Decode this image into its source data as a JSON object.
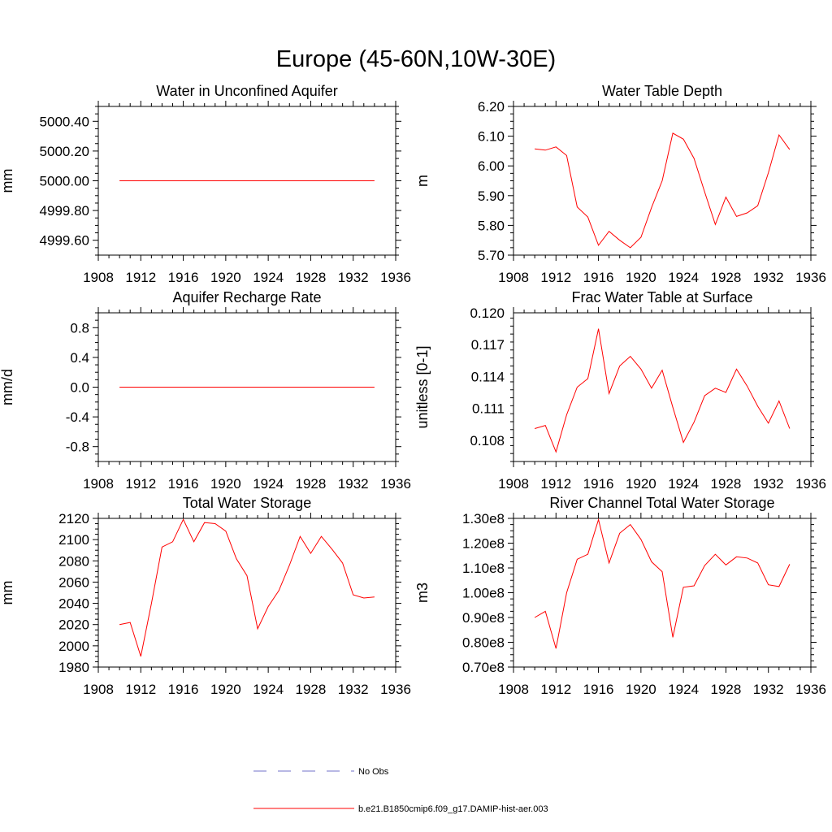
{
  "title": "Europe (45-60N,10W-30E)",
  "colors": {
    "model": "#ff0000",
    "obs": "#7070c8",
    "axis": "#000000"
  },
  "legend": {
    "obs_label": "No Obs",
    "model_label": "b.e21.B1850cmip6.f09_g17.DAMIP-hist-aer.003"
  },
  "chart_data": [
    {
      "type": "line",
      "title": "Water in Unconfined Aquifer",
      "ylabel": "mm",
      "xlim": [
        1908,
        1936
      ],
      "ylim": [
        4999.5,
        5000.5
      ],
      "xticks": [
        1908,
        1912,
        1916,
        1920,
        1924,
        1928,
        1932,
        1936
      ],
      "yticks": [
        4999.6,
        4999.8,
        5000.0,
        5000.2,
        5000.4
      ],
      "ytick_labels": [
        "4999.60",
        "4999.80",
        "5000.00",
        "5000.20",
        "5000.40"
      ],
      "series": [
        {
          "x": [
            1910,
            1911,
            1912,
            1913,
            1914,
            1915,
            1916,
            1917,
            1918,
            1919,
            1920,
            1921,
            1922,
            1923,
            1924,
            1925,
            1926,
            1927,
            1928,
            1929,
            1930,
            1931,
            1932,
            1933,
            1934
          ],
          "values": [
            5000,
            5000,
            5000,
            5000,
            5000,
            5000,
            5000,
            5000,
            5000,
            5000,
            5000,
            5000,
            5000,
            5000,
            5000,
            5000,
            5000,
            5000,
            5000,
            5000,
            5000,
            5000,
            5000,
            5000,
            5000
          ]
        }
      ]
    },
    {
      "type": "line",
      "title": "Water Table Depth",
      "ylabel": "m",
      "xlim": [
        1908,
        1936
      ],
      "ylim": [
        5.7,
        6.2
      ],
      "xticks": [
        1908,
        1912,
        1916,
        1920,
        1924,
        1928,
        1932,
        1936
      ],
      "yticks": [
        5.7,
        5.8,
        5.9,
        6.0,
        6.1,
        6.2
      ],
      "ytick_labels": [
        "5.70",
        "5.80",
        "5.90",
        "6.00",
        "6.10",
        "6.20"
      ],
      "series": [
        {
          "x": [
            1910,
            1911,
            1912,
            1913,
            1914,
            1915,
            1916,
            1917,
            1918,
            1919,
            1920,
            1921,
            1922,
            1923,
            1924,
            1925,
            1926,
            1927,
            1928,
            1929,
            1930,
            1931,
            1932,
            1933,
            1934
          ],
          "values": [
            6.057,
            6.053,
            6.064,
            6.035,
            5.862,
            5.828,
            5.733,
            5.78,
            5.75,
            5.725,
            5.76,
            5.86,
            5.95,
            6.11,
            6.09,
            6.025,
            5.912,
            5.803,
            5.895,
            5.83,
            5.842,
            5.866,
            5.977,
            6.104,
            6.055
          ]
        }
      ]
    },
    {
      "type": "line",
      "title": "Aquifer Recharge Rate",
      "ylabel": "mm/d",
      "xlim": [
        1908,
        1936
      ],
      "ylim": [
        -1.0,
        1.0
      ],
      "xticks": [
        1908,
        1912,
        1916,
        1920,
        1924,
        1928,
        1932,
        1936
      ],
      "yticks": [
        -0.8,
        -0.4,
        0.0,
        0.4,
        0.8
      ],
      "ytick_labels": [
        "-0.8",
        "-0.4",
        "0.0",
        "0.4",
        "0.8"
      ],
      "series": [
        {
          "x": [
            1910,
            1911,
            1912,
            1913,
            1914,
            1915,
            1916,
            1917,
            1918,
            1919,
            1920,
            1921,
            1922,
            1923,
            1924,
            1925,
            1926,
            1927,
            1928,
            1929,
            1930,
            1931,
            1932,
            1933,
            1934
          ],
          "values": [
            0,
            0,
            0,
            0,
            0,
            0,
            0,
            0,
            0,
            0,
            0,
            0,
            0,
            0,
            0,
            0,
            0,
            0,
            0,
            0,
            0,
            0,
            0,
            0,
            0
          ]
        }
      ]
    },
    {
      "type": "line",
      "title": "Frac Water Table at Surface",
      "ylabel": "unitless [0-1]",
      "xlim": [
        1908,
        1936
      ],
      "ylim": [
        0.106,
        0.12
      ],
      "xticks": [
        1908,
        1912,
        1916,
        1920,
        1924,
        1928,
        1932,
        1936
      ],
      "yticks": [
        0.108,
        0.111,
        0.114,
        0.117,
        0.12
      ],
      "ytick_labels": [
        "0.108",
        "0.111",
        "0.114",
        "0.117",
        "0.120"
      ],
      "series": [
        {
          "x": [
            1910,
            1911,
            1912,
            1913,
            1914,
            1915,
            1916,
            1917,
            1918,
            1919,
            1920,
            1921,
            1922,
            1923,
            1924,
            1925,
            1926,
            1927,
            1928,
            1929,
            1930,
            1931,
            1932,
            1933,
            1934
          ],
          "values": [
            0.1091,
            0.1094,
            0.1069,
            0.1104,
            0.113,
            0.1138,
            0.1185,
            0.1124,
            0.115,
            0.1159,
            0.1147,
            0.1129,
            0.1146,
            0.1111,
            0.1078,
            0.1097,
            0.1122,
            0.1129,
            0.1125,
            0.1147,
            0.1131,
            0.1112,
            0.1096,
            0.1117,
            0.1091
          ]
        }
      ]
    },
    {
      "type": "line",
      "title": "Total Water Storage",
      "ylabel": "mm",
      "xlim": [
        1908,
        1936
      ],
      "ylim": [
        1980,
        2120
      ],
      "xticks": [
        1908,
        1912,
        1916,
        1920,
        1924,
        1928,
        1932,
        1936
      ],
      "yticks": [
        1980,
        2000,
        2020,
        2040,
        2060,
        2080,
        2100,
        2120
      ],
      "ytick_labels": [
        "1980",
        "2000",
        "2020",
        "2040",
        "2060",
        "2080",
        "2100",
        "2120"
      ],
      "series": [
        {
          "x": [
            1910,
            1911,
            1912,
            1913,
            1914,
            1915,
            1916,
            1917,
            1918,
            1919,
            1920,
            1921,
            1922,
            1923,
            1924,
            1925,
            1926,
            1927,
            1928,
            1929,
            1930,
            1931,
            1932,
            1933,
            1934
          ],
          "values": [
            2020,
            2022,
            1990,
            2040,
            2093,
            2098,
            2119,
            2098,
            2116,
            2115,
            2108,
            2082,
            2066,
            2016,
            2037,
            2052,
            2076,
            2103,
            2087,
            2103,
            2091,
            2078,
            2048,
            2045,
            2046
          ]
        }
      ]
    },
    {
      "type": "line",
      "title": "River Channel Total Water Storage",
      "ylabel": "m3",
      "xlim": [
        1908,
        1936
      ],
      "ylim": [
        70000000.0,
        130000000.0
      ],
      "xticks": [
        1908,
        1912,
        1916,
        1920,
        1924,
        1928,
        1932,
        1936
      ],
      "yticks": [
        70000000.0,
        80000000.0,
        90000000.0,
        100000000.0,
        110000000.0,
        120000000.0,
        130000000.0
      ],
      "ytick_labels": [
        "0.70e8",
        "0.80e8",
        "0.90e8",
        "1.00e8",
        "1.10e8",
        "1.20e8",
        "1.30e8"
      ],
      "series": [
        {
          "x": [
            1910,
            1911,
            1912,
            1913,
            1914,
            1915,
            1916,
            1917,
            1918,
            1919,
            1920,
            1921,
            1922,
            1923,
            1924,
            1925,
            1926,
            1927,
            1928,
            1929,
            1930,
            1931,
            1932,
            1933,
            1934
          ],
          "values": [
            90000000.0,
            92500000.0,
            77500000.0,
            100000000.0,
            113500000.0,
            115500000.0,
            129500000.0,
            112000000.0,
            124000000.0,
            127500000.0,
            121500000.0,
            112500000.0,
            108500000.0,
            82000000.0,
            102200000.0,
            102800000.0,
            111000000.0,
            115500000.0,
            111200000.0,
            114500000.0,
            114000000.0,
            112000000.0,
            103200000.0,
            102500000.0,
            111500000.0
          ]
        }
      ]
    }
  ]
}
